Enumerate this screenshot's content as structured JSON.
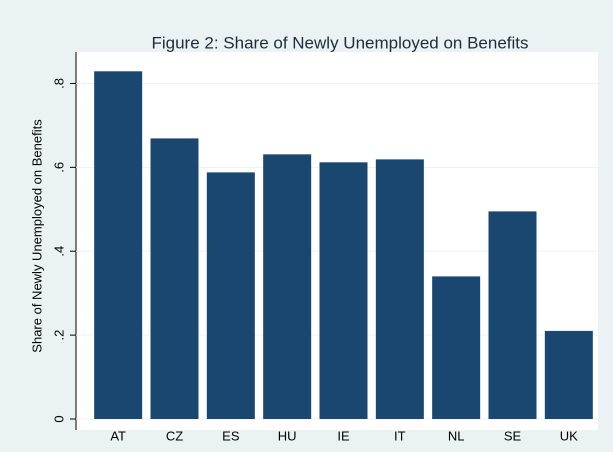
{
  "chart_data": {
    "type": "bar",
    "title": "Figure 2: Share of Newly Unemployed on Benefits",
    "y_label": "Share of Newly Unemployed on Benefits",
    "categories": [
      "AT",
      "CZ",
      "ES",
      "HU",
      "IE",
      "IT",
      "NL",
      "SE",
      "UK"
    ],
    "values": [
      0.829,
      0.669,
      0.588,
      0.631,
      0.612,
      0.619,
      0.34,
      0.495,
      0.21
    ],
    "color": "#1a476f",
    "ylim": [
      0,
      0.875
    ],
    "yticks": [
      0,
      {
        "value": 0.2,
        "label": ".2"
      },
      {
        "value": 0.4,
        "label": ".4"
      },
      {
        "value": 0.6,
        "label": ".6"
      },
      {
        "value": 0.8,
        "label": ".8"
      }
    ],
    "grid": true
  }
}
